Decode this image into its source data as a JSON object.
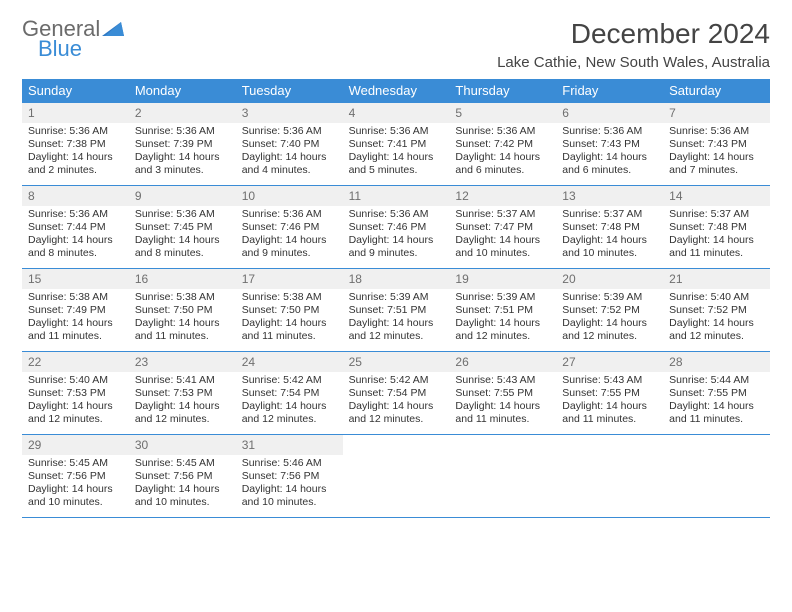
{
  "logo": {
    "word1": "General",
    "word2": "Blue"
  },
  "title": "December 2024",
  "location": "Lake Cathie, New South Wales, Australia",
  "colors": {
    "header_bg": "#3a8cd6",
    "header_text": "#ffffff",
    "daynum_bg": "#f0f0f0",
    "daynum_text": "#6f6f6f",
    "body_text": "#333333",
    "rule": "#3a8cd6",
    "logo_gray": "#6b6b6b",
    "logo_blue": "#3a8cd6"
  },
  "day_names": [
    "Sunday",
    "Monday",
    "Tuesday",
    "Wednesday",
    "Thursday",
    "Friday",
    "Saturday"
  ],
  "weeks": [
    [
      {
        "n": "1",
        "sr": "Sunrise: 5:36 AM",
        "ss": "Sunset: 7:38 PM",
        "dl": "Daylight: 14 hours and 2 minutes."
      },
      {
        "n": "2",
        "sr": "Sunrise: 5:36 AM",
        "ss": "Sunset: 7:39 PM",
        "dl": "Daylight: 14 hours and 3 minutes."
      },
      {
        "n": "3",
        "sr": "Sunrise: 5:36 AM",
        "ss": "Sunset: 7:40 PM",
        "dl": "Daylight: 14 hours and 4 minutes."
      },
      {
        "n": "4",
        "sr": "Sunrise: 5:36 AM",
        "ss": "Sunset: 7:41 PM",
        "dl": "Daylight: 14 hours and 5 minutes."
      },
      {
        "n": "5",
        "sr": "Sunrise: 5:36 AM",
        "ss": "Sunset: 7:42 PM",
        "dl": "Daylight: 14 hours and 6 minutes."
      },
      {
        "n": "6",
        "sr": "Sunrise: 5:36 AM",
        "ss": "Sunset: 7:43 PM",
        "dl": "Daylight: 14 hours and 6 minutes."
      },
      {
        "n": "7",
        "sr": "Sunrise: 5:36 AM",
        "ss": "Sunset: 7:43 PM",
        "dl": "Daylight: 14 hours and 7 minutes."
      }
    ],
    [
      {
        "n": "8",
        "sr": "Sunrise: 5:36 AM",
        "ss": "Sunset: 7:44 PM",
        "dl": "Daylight: 14 hours and 8 minutes."
      },
      {
        "n": "9",
        "sr": "Sunrise: 5:36 AM",
        "ss": "Sunset: 7:45 PM",
        "dl": "Daylight: 14 hours and 8 minutes."
      },
      {
        "n": "10",
        "sr": "Sunrise: 5:36 AM",
        "ss": "Sunset: 7:46 PM",
        "dl": "Daylight: 14 hours and 9 minutes."
      },
      {
        "n": "11",
        "sr": "Sunrise: 5:36 AM",
        "ss": "Sunset: 7:46 PM",
        "dl": "Daylight: 14 hours and 9 minutes."
      },
      {
        "n": "12",
        "sr": "Sunrise: 5:37 AM",
        "ss": "Sunset: 7:47 PM",
        "dl": "Daylight: 14 hours and 10 minutes."
      },
      {
        "n": "13",
        "sr": "Sunrise: 5:37 AM",
        "ss": "Sunset: 7:48 PM",
        "dl": "Daylight: 14 hours and 10 minutes."
      },
      {
        "n": "14",
        "sr": "Sunrise: 5:37 AM",
        "ss": "Sunset: 7:48 PM",
        "dl": "Daylight: 14 hours and 11 minutes."
      }
    ],
    [
      {
        "n": "15",
        "sr": "Sunrise: 5:38 AM",
        "ss": "Sunset: 7:49 PM",
        "dl": "Daylight: 14 hours and 11 minutes."
      },
      {
        "n": "16",
        "sr": "Sunrise: 5:38 AM",
        "ss": "Sunset: 7:50 PM",
        "dl": "Daylight: 14 hours and 11 minutes."
      },
      {
        "n": "17",
        "sr": "Sunrise: 5:38 AM",
        "ss": "Sunset: 7:50 PM",
        "dl": "Daylight: 14 hours and 11 minutes."
      },
      {
        "n": "18",
        "sr": "Sunrise: 5:39 AM",
        "ss": "Sunset: 7:51 PM",
        "dl": "Daylight: 14 hours and 12 minutes."
      },
      {
        "n": "19",
        "sr": "Sunrise: 5:39 AM",
        "ss": "Sunset: 7:51 PM",
        "dl": "Daylight: 14 hours and 12 minutes."
      },
      {
        "n": "20",
        "sr": "Sunrise: 5:39 AM",
        "ss": "Sunset: 7:52 PM",
        "dl": "Daylight: 14 hours and 12 minutes."
      },
      {
        "n": "21",
        "sr": "Sunrise: 5:40 AM",
        "ss": "Sunset: 7:52 PM",
        "dl": "Daylight: 14 hours and 12 minutes."
      }
    ],
    [
      {
        "n": "22",
        "sr": "Sunrise: 5:40 AM",
        "ss": "Sunset: 7:53 PM",
        "dl": "Daylight: 14 hours and 12 minutes."
      },
      {
        "n": "23",
        "sr": "Sunrise: 5:41 AM",
        "ss": "Sunset: 7:53 PM",
        "dl": "Daylight: 14 hours and 12 minutes."
      },
      {
        "n": "24",
        "sr": "Sunrise: 5:42 AM",
        "ss": "Sunset: 7:54 PM",
        "dl": "Daylight: 14 hours and 12 minutes."
      },
      {
        "n": "25",
        "sr": "Sunrise: 5:42 AM",
        "ss": "Sunset: 7:54 PM",
        "dl": "Daylight: 14 hours and 12 minutes."
      },
      {
        "n": "26",
        "sr": "Sunrise: 5:43 AM",
        "ss": "Sunset: 7:55 PM",
        "dl": "Daylight: 14 hours and 11 minutes."
      },
      {
        "n": "27",
        "sr": "Sunrise: 5:43 AM",
        "ss": "Sunset: 7:55 PM",
        "dl": "Daylight: 14 hours and 11 minutes."
      },
      {
        "n": "28",
        "sr": "Sunrise: 5:44 AM",
        "ss": "Sunset: 7:55 PM",
        "dl": "Daylight: 14 hours and 11 minutes."
      }
    ],
    [
      {
        "n": "29",
        "sr": "Sunrise: 5:45 AM",
        "ss": "Sunset: 7:56 PM",
        "dl": "Daylight: 14 hours and 10 minutes."
      },
      {
        "n": "30",
        "sr": "Sunrise: 5:45 AM",
        "ss": "Sunset: 7:56 PM",
        "dl": "Daylight: 14 hours and 10 minutes."
      },
      {
        "n": "31",
        "sr": "Sunrise: 5:46 AM",
        "ss": "Sunset: 7:56 PM",
        "dl": "Daylight: 14 hours and 10 minutes."
      },
      null,
      null,
      null,
      null
    ]
  ]
}
